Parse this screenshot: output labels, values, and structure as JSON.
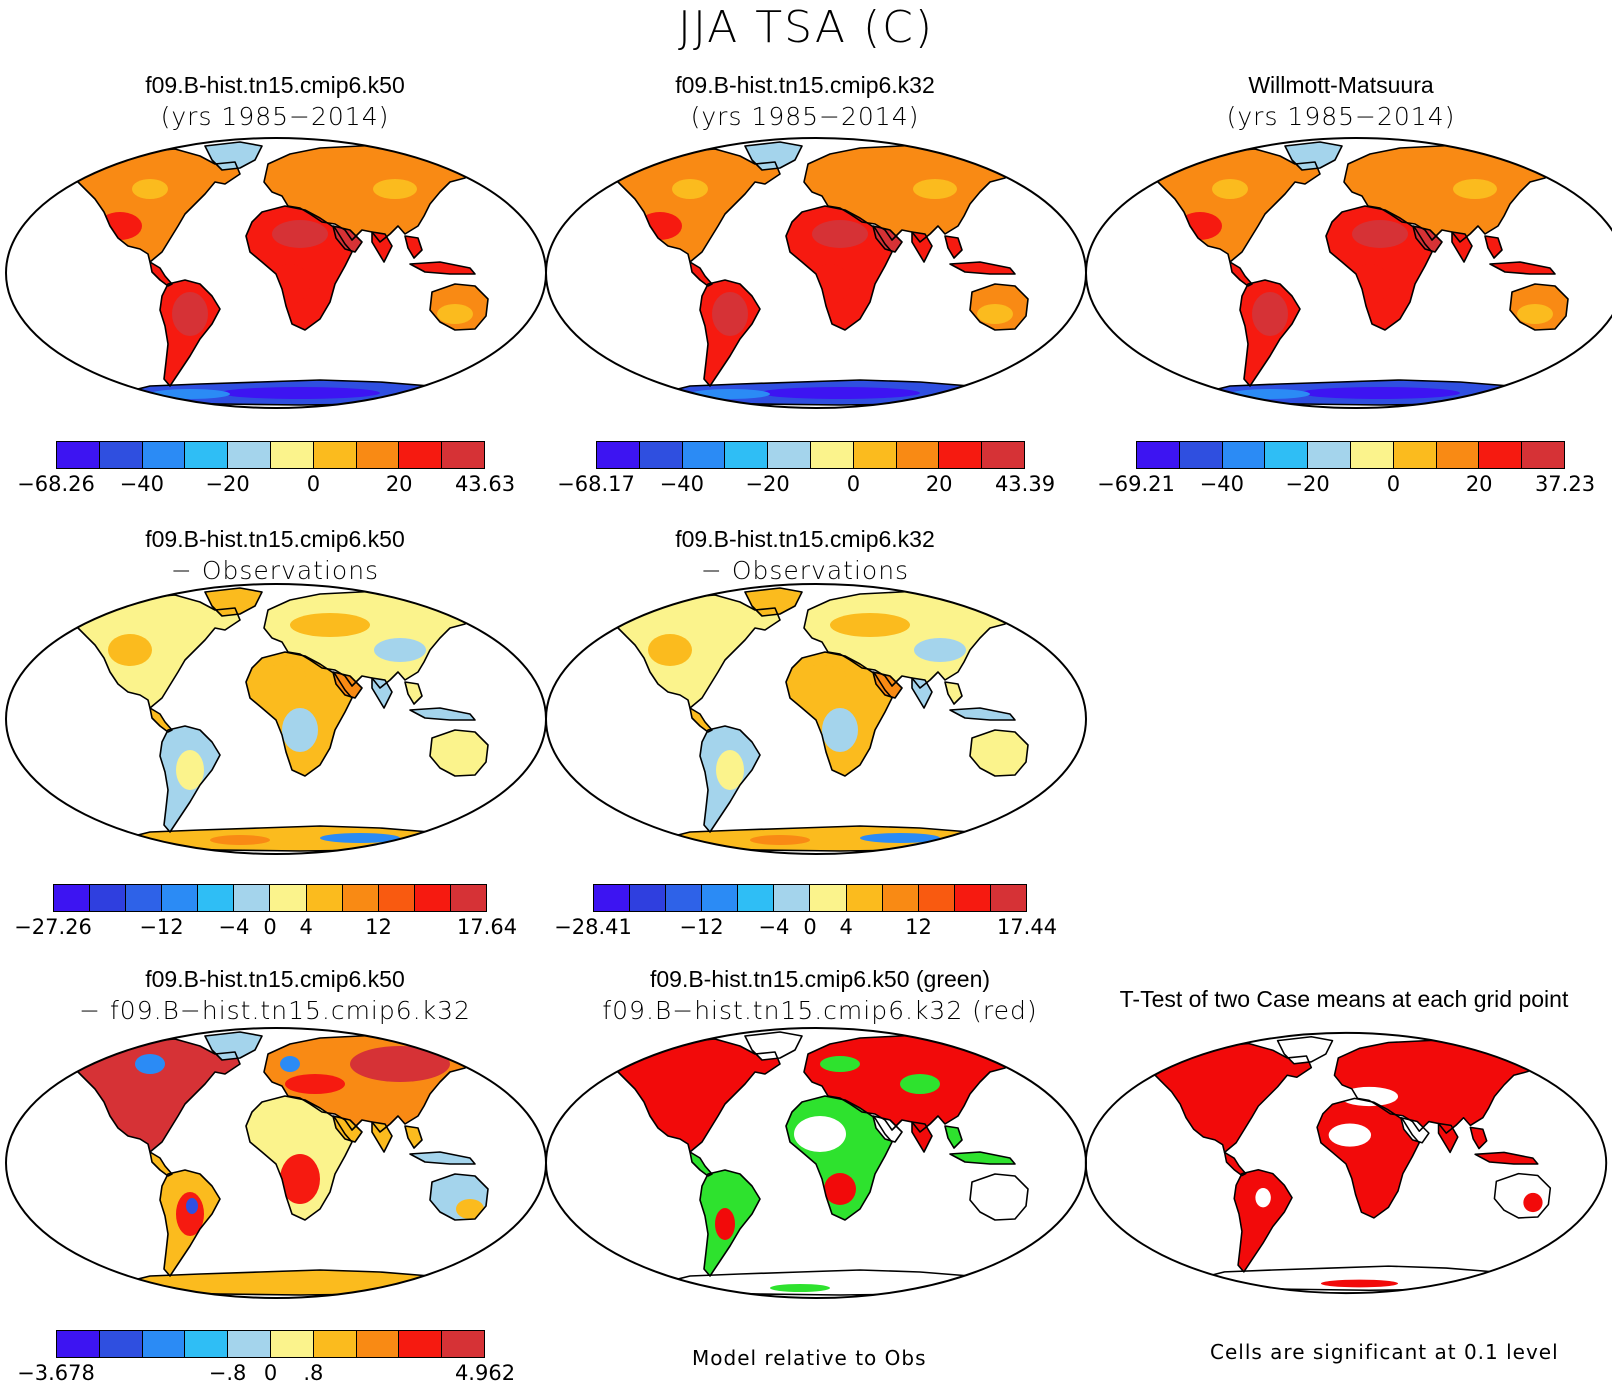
{
  "title": "JJA TSA (C)",
  "colors": {
    "c10": [
      "#3d14f2",
      "#2f4fe0",
      "#2b8bf5",
      "#2fbef5",
      "#a4d4ec",
      "#fbf38c",
      "#fbbb1e",
      "#f98a14",
      "#f61a10",
      "#d63236"
    ],
    "c12": [
      "#3d14f2",
      "#2f3fdf",
      "#2e62e8",
      "#2b8bf5",
      "#2fbef5",
      "#a4d4ec",
      "#fbf38c",
      "#fbbb1e",
      "#f98a14",
      "#f95a10",
      "#f61a10",
      "#d63236"
    ],
    "land_hot": "#e23228",
    "sig_red": "#f20a0a",
    "sig_green": "#2ee22e"
  },
  "panels": [
    {
      "id": "p1",
      "title1": "f09.B-hist.tn15.cmip6.k50",
      "title2": "(yrs 1985−2014)",
      "colorbar": {
        "ticks": [
          "−68.26",
          "−40",
          "−20",
          "0",
          "20",
          "43.63"
        ]
      }
    },
    {
      "id": "p2",
      "title1": "f09.B-hist.tn15.cmip6.k32",
      "title2": "(yrs 1985−2014)",
      "colorbar": {
        "ticks": [
          "−68.17",
          "−40",
          "−20",
          "0",
          "20",
          "43.39"
        ]
      }
    },
    {
      "id": "p3",
      "title1": "Willmott-Matsuura",
      "title2": "(yrs 1985−2014)",
      "colorbar": {
        "ticks": [
          "−69.21",
          "−40",
          "−20",
          "0",
          "20",
          "37.23"
        ]
      }
    },
    {
      "id": "p4",
      "title1": "f09.B-hist.tn15.cmip6.k50",
      "title2": "− Observations",
      "colorbar": {
        "ticks": [
          "−27.26",
          "−12",
          "−4",
          "0",
          "4",
          "12",
          "17.64"
        ]
      }
    },
    {
      "id": "p5",
      "title1": "f09.B-hist.tn15.cmip6.k32",
      "title2": "− Observations",
      "colorbar": {
        "ticks": [
          "−28.41",
          "−12",
          "−4",
          "0",
          "4",
          "12",
          "17.44"
        ]
      }
    },
    {
      "id": "p6",
      "title1": "f09.B-hist.tn15.cmip6.k50",
      "title2": "− f09.B−hist.tn15.cmip6.k32",
      "colorbar": {
        "ticks": [
          "−3.678",
          "−.8",
          "0",
          ".8",
          "4.962"
        ]
      }
    },
    {
      "id": "p7",
      "title1": "f09.B-hist.tn15.cmip6.k50 (green)",
      "title2": "f09.B−hist.tn15.cmip6.k32 (red)",
      "note": "Model relative to Obs"
    },
    {
      "id": "p8",
      "title1": "T-Test of two Case means at each grid point",
      "note": "Cells are significant at 0.1 level"
    }
  ]
}
